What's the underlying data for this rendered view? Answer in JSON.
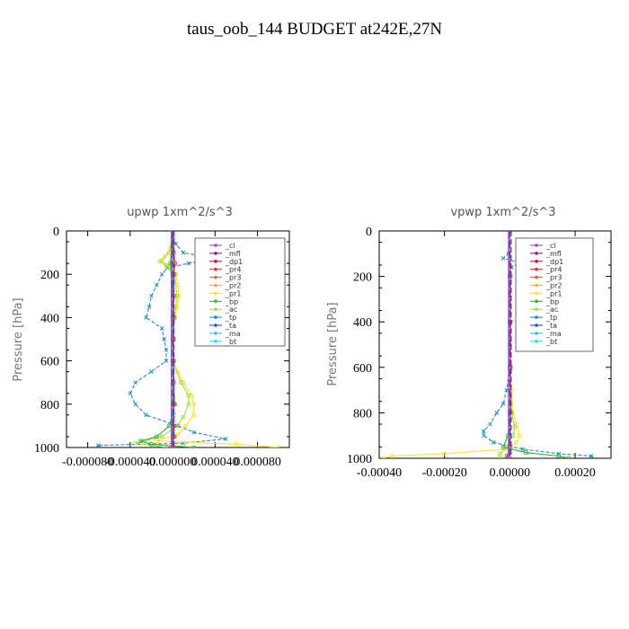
{
  "title": "taus_oob_144  BUDGET at242E,27N",
  "legend_entries": [
    "_cl",
    "_mfl",
    "_dp1",
    "_pr4",
    "_pr3",
    "_pr2",
    "_pr1",
    "_bp",
    "_ac",
    "_tp",
    "_ta",
    "_ma",
    "_bt"
  ],
  "series_colors": {
    "_cl": "#9b4fc0",
    "_mfl": "#7a2a6a",
    "_dp1": "#c0105a",
    "_pr4": "#e0303a",
    "_pr3": "#ff5a40",
    "_pr2": "#ffaa30",
    "_pr1": "#ffe030",
    "_bp": "#30b030",
    "_ac": "#a0e040",
    "_tp": "#2a8ac0",
    "_ta": "#2a4ad0",
    "_ma": "#40c0d0",
    "_bt": "#20e0ff"
  },
  "chart_data": [
    {
      "type": "line",
      "title": "upwp   1xm^2/s^3",
      "ylabel": "Pressure [hPa]",
      "xlim": [
        -0.0001,
        0.00011
      ],
      "ylim": [
        1000,
        0
      ],
      "xticks": [
        -8e-05,
        -4e-05,
        0.0,
        4e-05,
        8e-05
      ],
      "xtick_labels": [
        "-0.000080",
        "-0.000040",
        "0.000000",
        "0.000040",
        "0.000080"
      ],
      "yticks": [
        0,
        200,
        400,
        600,
        800,
        1000
      ],
      "ytick_labels": [
        "0",
        "200",
        "400",
        "600",
        "800",
        "1000"
      ],
      "legend_position": "top-right",
      "series": [
        {
          "name": "_tp",
          "p": [
            0,
            60,
            100,
            130,
            150,
            170,
            200,
            250,
            300,
            350,
            400,
            450,
            500,
            550,
            600,
            650,
            700,
            750,
            800,
            850,
            900,
            930,
            960,
            980,
            990,
            1000
          ],
          "v": [
            0,
            3e-06,
            1e-05,
            4e-05,
            1.5e-05,
            -5e-06,
            -1e-05,
            -1.5e-05,
            -2e-05,
            -2.2e-05,
            -2.5e-05,
            -1e-05,
            -8e-06,
            -6e-06,
            -6e-06,
            -2e-05,
            -3.5e-05,
            -4e-05,
            -3.5e-05,
            -2.5e-05,
            5e-06,
            2e-05,
            5e-05,
            1e-05,
            -7e-05,
            -7e-05
          ]
        },
        {
          "name": "_pr1",
          "p": [
            0,
            80,
            120,
            140,
            160,
            200,
            250,
            300,
            350,
            400,
            500,
            600,
            650,
            700,
            760,
            800,
            850,
            900,
            940,
            970,
            985,
            1000
          ],
          "v": [
            0,
            -2e-06,
            -8e-06,
            -1e-05,
            -4e-06,
            3e-06,
            5e-06,
            6e-06,
            4e-06,
            2e-06,
            0.0,
            0.0,
            5e-06,
            1e-05,
            1.8e-05,
            2e-05,
            2e-05,
            1.2e-05,
            5e-06,
            -1.5e-05,
            6e-05,
            0.0001
          ]
        },
        {
          "name": "_ac",
          "p": [
            0,
            100,
            140,
            160,
            200,
            300,
            400,
            500,
            600,
            700,
            760,
            800,
            860,
            900,
            950,
            980,
            1000
          ],
          "v": [
            0,
            -3e-06,
            -1.2e-05,
            -6e-06,
            2e-06,
            4e-06,
            2e-06,
            0.0,
            0.0,
            8e-06,
            1.5e-05,
            1.5e-05,
            1e-05,
            4e-06,
            -1e-05,
            -3.5e-05,
            -5e-06
          ]
        },
        {
          "name": "_bp",
          "p": [
            0,
            150,
            300,
            600,
            800,
            900,
            950,
            970,
            985,
            1000
          ],
          "v": [
            0,
            -2e-06,
            0.0,
            0.0,
            2e-06,
            -3e-06,
            -1.5e-05,
            -3e-05,
            -2e-05,
            2e-05
          ]
        },
        {
          "name": "_cl",
          "p": [
            0,
            200,
            400,
            600,
            800,
            1000
          ],
          "v": [
            0,
            0,
            0,
            0,
            0,
            0
          ]
        },
        {
          "name": "_ma",
          "p": [
            0,
            150,
            300,
            500,
            700,
            850,
            950,
            1000
          ],
          "v": [
            0,
            2e-06,
            1e-06,
            0.0,
            0.0,
            1e-06,
            2e-06,
            0.0
          ]
        },
        {
          "name": "_pr4",
          "p": [
            0,
            100,
            150,
            200,
            300,
            400,
            500,
            600,
            700,
            800,
            900,
            950,
            1000
          ],
          "v": [
            0,
            1e-06,
            2e-06,
            1e-06,
            1e-06,
            1e-06,
            1e-06,
            1e-06,
            1e-06,
            1e-06,
            1e-06,
            1e-06,
            0.0
          ]
        }
      ]
    },
    {
      "type": "line",
      "title": "vpwp   1xm^2/s^3",
      "ylabel": "Pressure [hPa]",
      "xlim": [
        -0.0004,
        0.00031
      ],
      "ylim": [
        1000,
        0
      ],
      "xticks": [
        -0.0004,
        -0.0002,
        0.0,
        0.0002
      ],
      "xtick_labels": [
        "-0.00040",
        "-0.00020",
        "0.00000",
        "0.00020"
      ],
      "yticks": [
        0,
        200,
        400,
        600,
        800,
        1000
      ],
      "ytick_labels": [
        "0",
        "200",
        "400",
        "600",
        "800",
        "1000"
      ],
      "legend_position": "top-right",
      "series": [
        {
          "name": "_tp",
          "p": [
            0,
            100,
            120,
            140,
            160,
            200,
            400,
            600,
            700,
            760,
            800,
            850,
            880,
            900,
            930,
            960,
            980,
            990,
            1000
          ],
          "v": [
            0,
            -5e-06,
            -2e-05,
            3e-05,
            5e-06,
            0.0,
            0.0,
            0.0,
            -1e-05,
            -2e-05,
            -4e-05,
            -6e-05,
            -8e-05,
            -8e-05,
            -5e-05,
            4e-05,
            0.00015,
            0.00025,
            0.00025
          ]
        },
        {
          "name": "_pr1",
          "p": [
            0,
            200,
            400,
            600,
            700,
            800,
            850,
            900,
            930,
            960,
            980,
            990,
            1000
          ],
          "v": [
            0,
            0.0,
            0.0,
            0.0,
            5e-06,
            1e-05,
            2e-05,
            3e-05,
            2e-05,
            -1e-05,
            -0.0002,
            -0.00036,
            -0.00039
          ]
        },
        {
          "name": "_ac",
          "p": [
            0,
            200,
            400,
            600,
            800,
            860,
            900,
            950,
            980,
            1000
          ],
          "v": [
            0,
            0.0,
            0.0,
            0.0,
            5e-06,
            1.5e-05,
            1e-05,
            -1e-05,
            -3e-05,
            -3e-05
          ]
        },
        {
          "name": "_bp",
          "p": [
            0,
            200,
            400,
            600,
            800,
            900,
            950,
            975,
            990,
            1000
          ],
          "v": [
            0,
            0.0,
            0.0,
            0.0,
            0.0,
            -5e-06,
            -2e-05,
            5e-05,
            0.00015,
            0.00018
          ]
        },
        {
          "name": "_cl",
          "p": [
            0,
            200,
            400,
            600,
            800,
            1000
          ],
          "v": [
            0,
            0,
            0,
            0,
            0,
            0
          ]
        },
        {
          "name": "_pr4",
          "p": [
            0,
            200,
            400,
            600,
            800,
            950,
            990,
            1000
          ],
          "v": [
            0,
            2e-06,
            2e-06,
            2e-06,
            2e-06,
            0.0,
            -8e-06,
            -5e-06
          ]
        },
        {
          "name": "_ma",
          "p": [
            0,
            200,
            500,
            800,
            950,
            1000
          ],
          "v": [
            0,
            1e-06,
            0.0,
            1e-06,
            2e-06,
            0.0
          ]
        }
      ]
    }
  ]
}
